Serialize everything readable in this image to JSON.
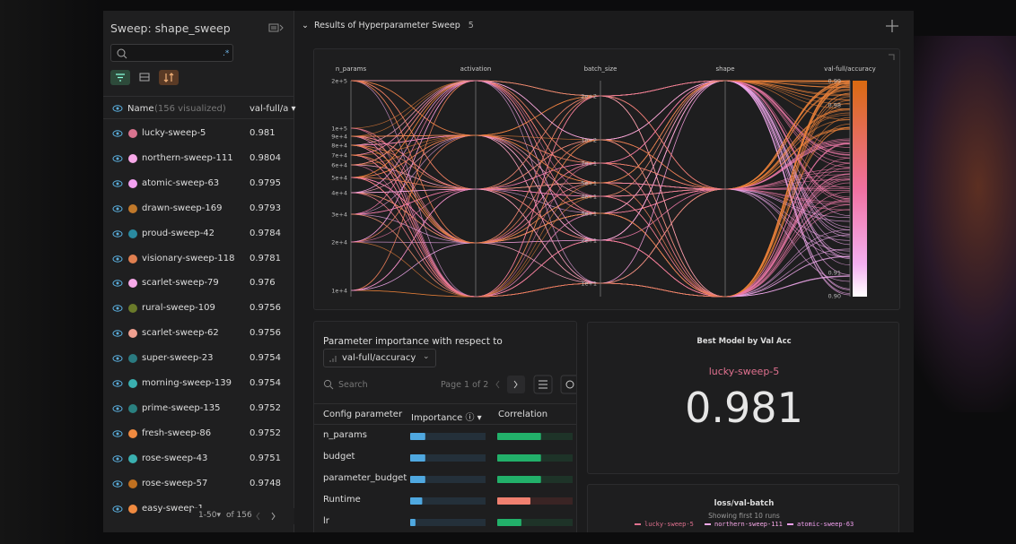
{
  "sidebar": {
    "title": "Sweep: shape_sweep",
    "name_header": "Name",
    "visualized": "(156 visualized)",
    "metric_header": "val-full/a",
    "page_range": "1-50",
    "page_total": "of 156",
    "runs": [
      {
        "name": "lucky-sweep-5",
        "color": "#d9738f",
        "value": "0.981"
      },
      {
        "name": "northern-sweep-111",
        "color": "#f7a8e8",
        "value": "0.9804"
      },
      {
        "name": "atomic-sweep-63",
        "color": "#f2a0f0",
        "value": "0.9795"
      },
      {
        "name": "drawn-sweep-169",
        "color": "#c0782a",
        "value": "0.9793"
      },
      {
        "name": "proud-sweep-42",
        "color": "#2a8aa0",
        "value": "0.9784"
      },
      {
        "name": "visionary-sweep-118",
        "color": "#e07f50",
        "value": "0.9781"
      },
      {
        "name": "scarlet-sweep-79",
        "color": "#f7a8e8",
        "value": "0.976"
      },
      {
        "name": "rural-sweep-109",
        "color": "#6a7a2a",
        "value": "0.9756"
      },
      {
        "name": "scarlet-sweep-62",
        "color": "#f0a090",
        "value": "0.9756"
      },
      {
        "name": "super-sweep-23",
        "color": "#2a7a80",
        "value": "0.9754"
      },
      {
        "name": "morning-sweep-139",
        "color": "#3ab0b0",
        "value": "0.9754"
      },
      {
        "name": "prime-sweep-135",
        "color": "#2a8080",
        "value": "0.9752"
      },
      {
        "name": "fresh-sweep-86",
        "color": "#f08a40",
        "value": "0.9752"
      },
      {
        "name": "rose-sweep-43",
        "color": "#3ab0b0",
        "value": "0.9751"
      },
      {
        "name": "rose-sweep-57",
        "color": "#c07020",
        "value": "0.9748"
      },
      {
        "name": "easy-sweep-1",
        "color": "#f08a40"
      }
    ]
  },
  "section": {
    "title": "Results of Hyperparameter Sweep",
    "count": "5"
  },
  "parallel": {
    "axes": [
      {
        "name": "n_params",
        "ticks": [
          "2e+5",
          "1e+5",
          "9e+4",
          "8e+4",
          "7e+4",
          "6e+4",
          "5e+4",
          "4e+4",
          "3e+4",
          "2e+4",
          "1e+4"
        ]
      },
      {
        "name": "activation",
        "ticks": []
      },
      {
        "name": "batch_size",
        "ticks": [
          "2e+2",
          "1e+2",
          "7e+1",
          "5e+1",
          "4e+1",
          "3e+1",
          "2e+1",
          "1e+1"
        ]
      },
      {
        "name": "shape",
        "ticks": []
      },
      {
        "name": "val-full/accuracy",
        "ticks": [
          "0.99",
          "0.98",
          "0.91",
          "0.90"
        ]
      }
    ]
  },
  "importance": {
    "title": "Parameter importance with respect to",
    "metric": "val-full/accuracy",
    "search": "Search",
    "page": "Page 1 of 2",
    "columns": [
      "Config parameter",
      "Importance",
      "Correlation"
    ],
    "rows": [
      {
        "param": "n_params",
        "importance": 0.2,
        "correlation": 0.58
      },
      {
        "param": "budget",
        "importance": 0.2,
        "correlation": 0.58
      },
      {
        "param": "parameter_budget",
        "importance": 0.2,
        "correlation": 0.58
      },
      {
        "param": "Runtime",
        "importance": 0.16,
        "correlation": -0.44
      },
      {
        "param": "lr",
        "importance": 0.07,
        "correlation": 0.32
      }
    ]
  },
  "best_model": {
    "title": "Best Model by Val Acc",
    "run": "lucky-sweep-5",
    "value": "0.981"
  },
  "loss": {
    "title": "loss/val-batch",
    "subtitle": "Showing first 10 runs",
    "legend": [
      {
        "name": "lucky-sweep-5",
        "color": "#e0718f"
      },
      {
        "name": "northern-sweep-111",
        "color": "#f7a8e8"
      },
      {
        "name": "atomic-sweep-63",
        "color": "#f2a0f0"
      }
    ]
  }
}
